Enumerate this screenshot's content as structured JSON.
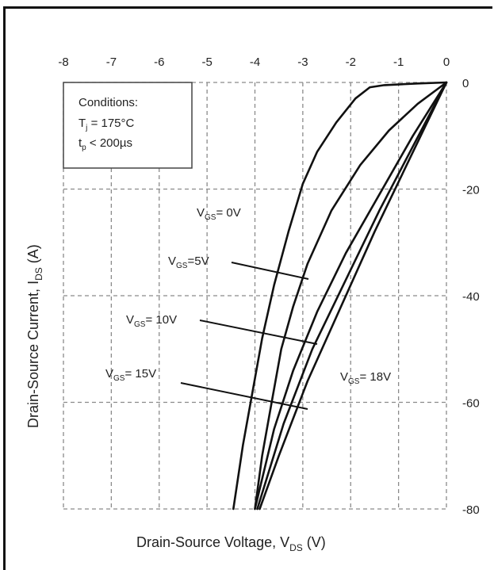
{
  "chart_data": {
    "type": "line",
    "title": "",
    "xlabel": "Drain-Source Voltage, V",
    "xlabel_sub": "DS",
    "xlabel_unit": " (V)",
    "ylabel": "Drain-Source Current, I",
    "ylabel_sub": "DS",
    "ylabel_unit": " (A)",
    "xlim": [
      -8,
      0
    ],
    "ylim": [
      -80,
      0
    ],
    "x_ticks": [
      -8,
      -7,
      -6,
      -5,
      -4,
      -3,
      -2,
      -1,
      0
    ],
    "y_ticks": [
      0,
      -20,
      -40,
      -60,
      -80
    ],
    "x_axis_position": "top",
    "y_axis_position": "right",
    "grid": "dashed",
    "conditions": {
      "heading": "Conditions:",
      "line1_main": "T",
      "line1_sub": "j",
      "line1_rest": " = 175°C",
      "line2_main": "t",
      "line2_sub": "p",
      "line2_rest": " < 200µs"
    },
    "series": [
      {
        "label_main": "V",
        "label_sub": "GS",
        "label_rest": "= 0V",
        "points": [
          [
            0,
            0
          ],
          [
            -0.6,
            -0.2
          ],
          [
            -1.3,
            -0.5
          ],
          [
            -1.6,
            -0.9
          ],
          [
            -1.9,
            -3
          ],
          [
            -2.3,
            -7.5
          ],
          [
            -2.7,
            -13
          ],
          [
            -3.0,
            -19
          ],
          [
            -3.3,
            -28
          ],
          [
            -3.6,
            -38
          ],
          [
            -3.85,
            -48
          ],
          [
            -4.05,
            -58
          ],
          [
            -4.25,
            -68
          ],
          [
            -4.45,
            -80
          ]
        ]
      },
      {
        "label_main": "V",
        "label_sub": "GS",
        "label_rest": "=5V",
        "points": [
          [
            0,
            0
          ],
          [
            -0.6,
            -4
          ],
          [
            -1.2,
            -9
          ],
          [
            -1.8,
            -15.5
          ],
          [
            -2.4,
            -24
          ],
          [
            -2.9,
            -34
          ],
          [
            -3.2,
            -42
          ],
          [
            -3.45,
            -50
          ],
          [
            -3.65,
            -60
          ],
          [
            -3.85,
            -70
          ],
          [
            -4.0,
            -80
          ]
        ]
      },
      {
        "label_main": "V",
        "label_sub": "GS",
        "label_rest": "= 10V",
        "points": [
          [
            0,
            0
          ],
          [
            -0.7,
            -10
          ],
          [
            -1.4,
            -21
          ],
          [
            -2.1,
            -32
          ],
          [
            -2.7,
            -43
          ],
          [
            -3.2,
            -54
          ],
          [
            -3.6,
            -65
          ],
          [
            -4.0,
            -80
          ]
        ]
      },
      {
        "label_main": "V",
        "label_sub": "GS",
        "label_rest": "= 15V",
        "points": [
          [
            0,
            0
          ],
          [
            -0.7,
            -12
          ],
          [
            -1.4,
            -24
          ],
          [
            -2.1,
            -37
          ],
          [
            -2.8,
            -50
          ],
          [
            -3.4,
            -64
          ],
          [
            -3.95,
            -80
          ]
        ]
      },
      {
        "label_main": "V",
        "label_sub": "GS",
        "label_rest": "= 18V",
        "points": [
          [
            0,
            0
          ],
          [
            -0.75,
            -14
          ],
          [
            -1.5,
            -28
          ],
          [
            -2.2,
            -42
          ],
          [
            -2.9,
            -56
          ],
          [
            -3.5,
            -70
          ],
          [
            -3.9,
            -80
          ]
        ]
      }
    ]
  }
}
